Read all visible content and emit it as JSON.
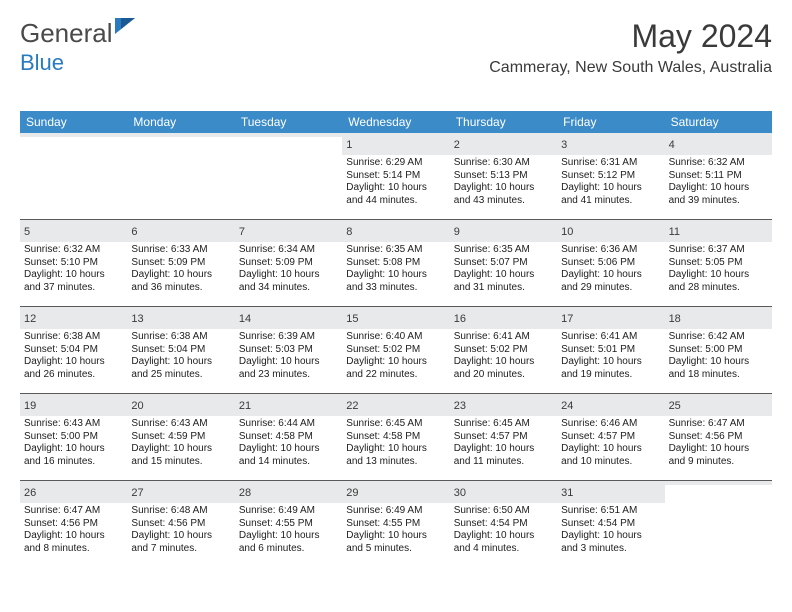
{
  "brand": {
    "part1": "General",
    "part2": "Blue"
  },
  "title": "May 2024",
  "location": "Cammeray, New South Wales, Australia",
  "colors": {
    "header_bg": "#3b8bc9",
    "daynum_bg": "#e8e9ea",
    "rule": "#5a5a5a",
    "text": "#202020",
    "brand_gray": "#4a4a4a",
    "brand_blue": "#2a7ac0"
  },
  "weekdays": [
    "Sunday",
    "Monday",
    "Tuesday",
    "Wednesday",
    "Thursday",
    "Friday",
    "Saturday"
  ],
  "weeks": [
    [
      {
        "n": "",
        "sunrise": "",
        "sunset": "",
        "daylight": ""
      },
      {
        "n": "",
        "sunrise": "",
        "sunset": "",
        "daylight": ""
      },
      {
        "n": "",
        "sunrise": "",
        "sunset": "",
        "daylight": ""
      },
      {
        "n": "1",
        "sunrise": "Sunrise: 6:29 AM",
        "sunset": "Sunset: 5:14 PM",
        "daylight": "Daylight: 10 hours and 44 minutes."
      },
      {
        "n": "2",
        "sunrise": "Sunrise: 6:30 AM",
        "sunset": "Sunset: 5:13 PM",
        "daylight": "Daylight: 10 hours and 43 minutes."
      },
      {
        "n": "3",
        "sunrise": "Sunrise: 6:31 AM",
        "sunset": "Sunset: 5:12 PM",
        "daylight": "Daylight: 10 hours and 41 minutes."
      },
      {
        "n": "4",
        "sunrise": "Sunrise: 6:32 AM",
        "sunset": "Sunset: 5:11 PM",
        "daylight": "Daylight: 10 hours and 39 minutes."
      }
    ],
    [
      {
        "n": "5",
        "sunrise": "Sunrise: 6:32 AM",
        "sunset": "Sunset: 5:10 PM",
        "daylight": "Daylight: 10 hours and 37 minutes."
      },
      {
        "n": "6",
        "sunrise": "Sunrise: 6:33 AM",
        "sunset": "Sunset: 5:09 PM",
        "daylight": "Daylight: 10 hours and 36 minutes."
      },
      {
        "n": "7",
        "sunrise": "Sunrise: 6:34 AM",
        "sunset": "Sunset: 5:09 PM",
        "daylight": "Daylight: 10 hours and 34 minutes."
      },
      {
        "n": "8",
        "sunrise": "Sunrise: 6:35 AM",
        "sunset": "Sunset: 5:08 PM",
        "daylight": "Daylight: 10 hours and 33 minutes."
      },
      {
        "n": "9",
        "sunrise": "Sunrise: 6:35 AM",
        "sunset": "Sunset: 5:07 PM",
        "daylight": "Daylight: 10 hours and 31 minutes."
      },
      {
        "n": "10",
        "sunrise": "Sunrise: 6:36 AM",
        "sunset": "Sunset: 5:06 PM",
        "daylight": "Daylight: 10 hours and 29 minutes."
      },
      {
        "n": "11",
        "sunrise": "Sunrise: 6:37 AM",
        "sunset": "Sunset: 5:05 PM",
        "daylight": "Daylight: 10 hours and 28 minutes."
      }
    ],
    [
      {
        "n": "12",
        "sunrise": "Sunrise: 6:38 AM",
        "sunset": "Sunset: 5:04 PM",
        "daylight": "Daylight: 10 hours and 26 minutes."
      },
      {
        "n": "13",
        "sunrise": "Sunrise: 6:38 AM",
        "sunset": "Sunset: 5:04 PM",
        "daylight": "Daylight: 10 hours and 25 minutes."
      },
      {
        "n": "14",
        "sunrise": "Sunrise: 6:39 AM",
        "sunset": "Sunset: 5:03 PM",
        "daylight": "Daylight: 10 hours and 23 minutes."
      },
      {
        "n": "15",
        "sunrise": "Sunrise: 6:40 AM",
        "sunset": "Sunset: 5:02 PM",
        "daylight": "Daylight: 10 hours and 22 minutes."
      },
      {
        "n": "16",
        "sunrise": "Sunrise: 6:41 AM",
        "sunset": "Sunset: 5:02 PM",
        "daylight": "Daylight: 10 hours and 20 minutes."
      },
      {
        "n": "17",
        "sunrise": "Sunrise: 6:41 AM",
        "sunset": "Sunset: 5:01 PM",
        "daylight": "Daylight: 10 hours and 19 minutes."
      },
      {
        "n": "18",
        "sunrise": "Sunrise: 6:42 AM",
        "sunset": "Sunset: 5:00 PM",
        "daylight": "Daylight: 10 hours and 18 minutes."
      }
    ],
    [
      {
        "n": "19",
        "sunrise": "Sunrise: 6:43 AM",
        "sunset": "Sunset: 5:00 PM",
        "daylight": "Daylight: 10 hours and 16 minutes."
      },
      {
        "n": "20",
        "sunrise": "Sunrise: 6:43 AM",
        "sunset": "Sunset: 4:59 PM",
        "daylight": "Daylight: 10 hours and 15 minutes."
      },
      {
        "n": "21",
        "sunrise": "Sunrise: 6:44 AM",
        "sunset": "Sunset: 4:58 PM",
        "daylight": "Daylight: 10 hours and 14 minutes."
      },
      {
        "n": "22",
        "sunrise": "Sunrise: 6:45 AM",
        "sunset": "Sunset: 4:58 PM",
        "daylight": "Daylight: 10 hours and 13 minutes."
      },
      {
        "n": "23",
        "sunrise": "Sunrise: 6:45 AM",
        "sunset": "Sunset: 4:57 PM",
        "daylight": "Daylight: 10 hours and 11 minutes."
      },
      {
        "n": "24",
        "sunrise": "Sunrise: 6:46 AM",
        "sunset": "Sunset: 4:57 PM",
        "daylight": "Daylight: 10 hours and 10 minutes."
      },
      {
        "n": "25",
        "sunrise": "Sunrise: 6:47 AM",
        "sunset": "Sunset: 4:56 PM",
        "daylight": "Daylight: 10 hours and 9 minutes."
      }
    ],
    [
      {
        "n": "26",
        "sunrise": "Sunrise: 6:47 AM",
        "sunset": "Sunset: 4:56 PM",
        "daylight": "Daylight: 10 hours and 8 minutes."
      },
      {
        "n": "27",
        "sunrise": "Sunrise: 6:48 AM",
        "sunset": "Sunset: 4:56 PM",
        "daylight": "Daylight: 10 hours and 7 minutes."
      },
      {
        "n": "28",
        "sunrise": "Sunrise: 6:49 AM",
        "sunset": "Sunset: 4:55 PM",
        "daylight": "Daylight: 10 hours and 6 minutes."
      },
      {
        "n": "29",
        "sunrise": "Sunrise: 6:49 AM",
        "sunset": "Sunset: 4:55 PM",
        "daylight": "Daylight: 10 hours and 5 minutes."
      },
      {
        "n": "30",
        "sunrise": "Sunrise: 6:50 AM",
        "sunset": "Sunset: 4:54 PM",
        "daylight": "Daylight: 10 hours and 4 minutes."
      },
      {
        "n": "31",
        "sunrise": "Sunrise: 6:51 AM",
        "sunset": "Sunset: 4:54 PM",
        "daylight": "Daylight: 10 hours and 3 minutes."
      },
      {
        "n": "",
        "sunrise": "",
        "sunset": "",
        "daylight": ""
      }
    ]
  ]
}
